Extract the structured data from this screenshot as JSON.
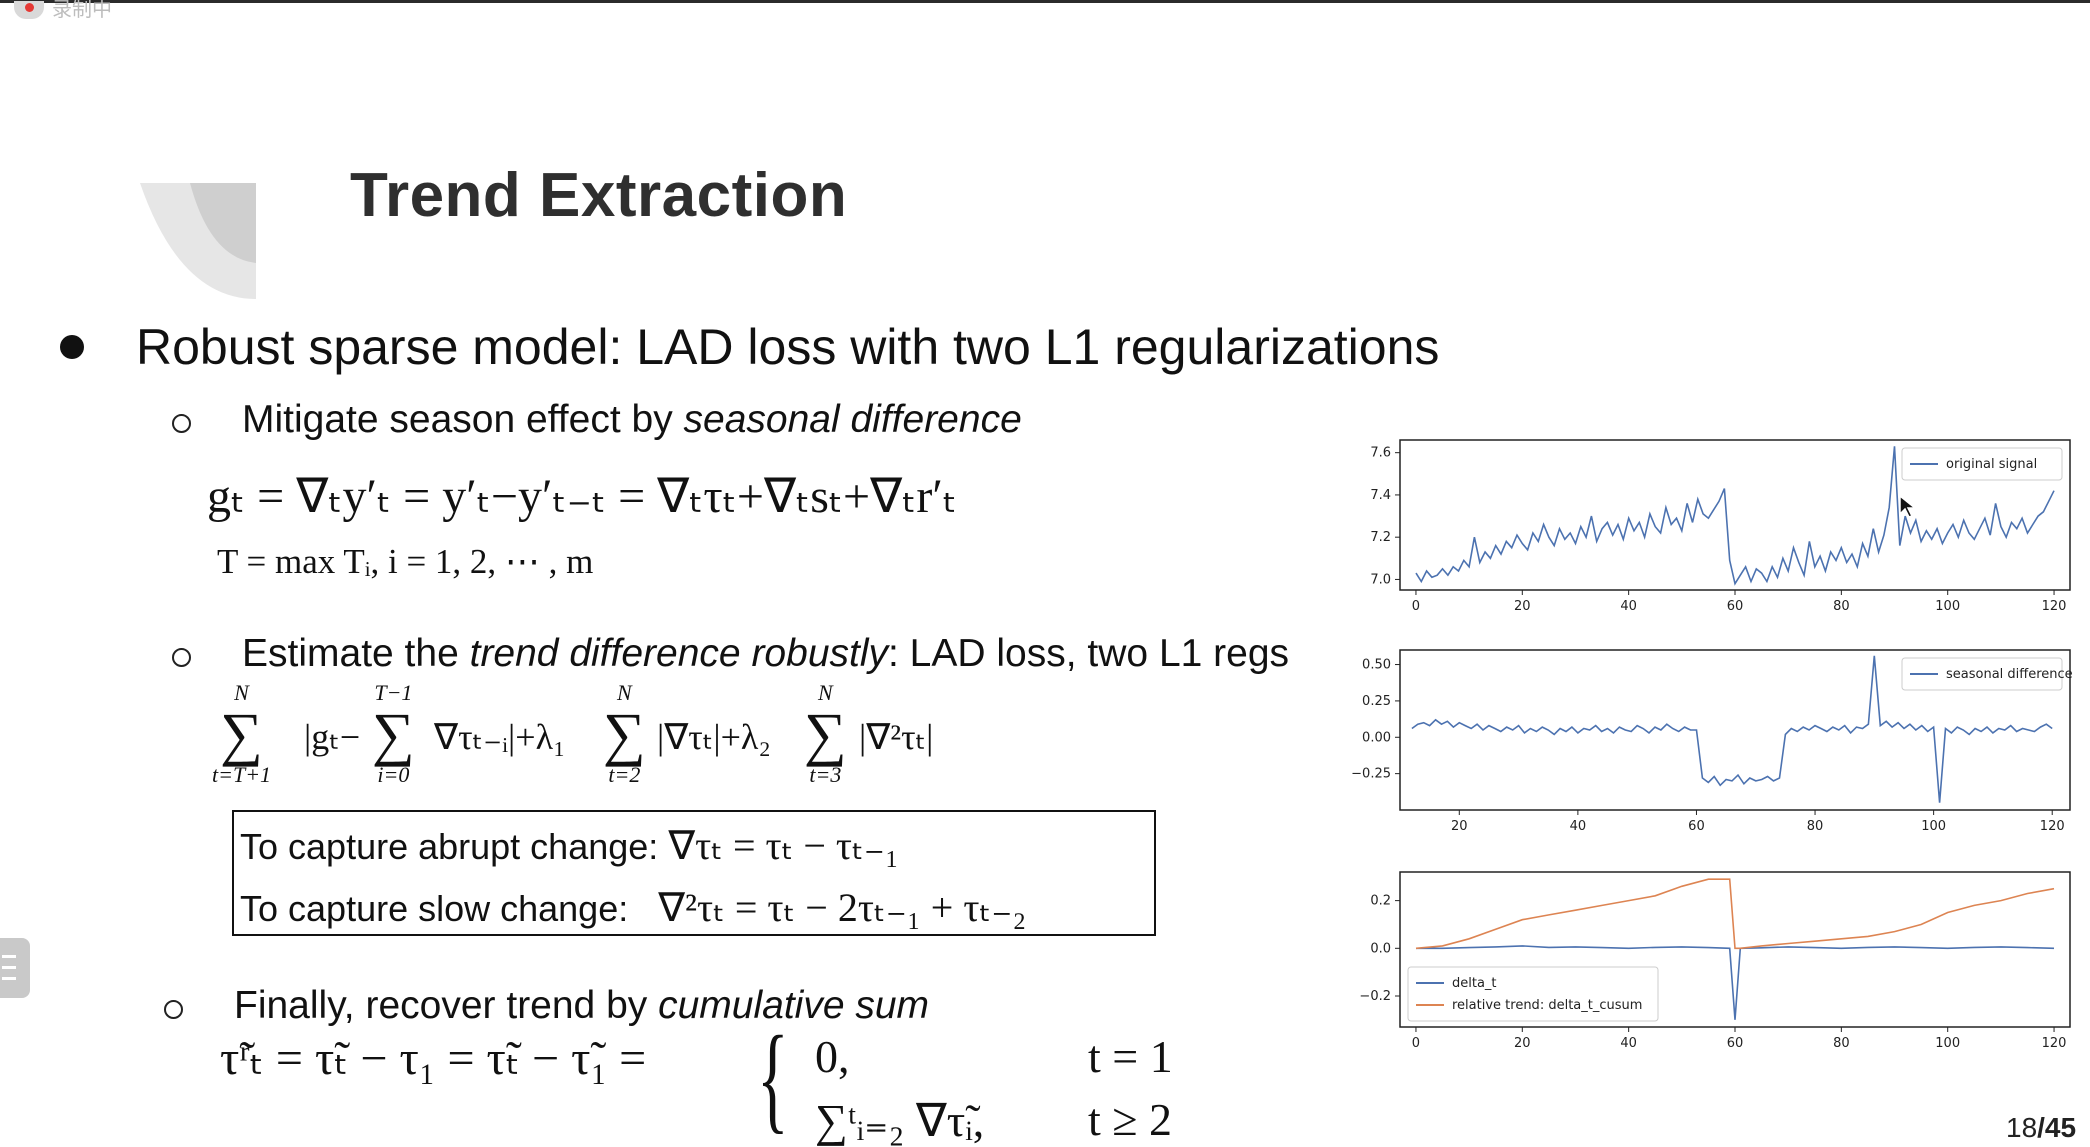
{
  "recorder": {
    "label": "录制中"
  },
  "slide": {
    "title": "Trend Extraction",
    "main_point": "Robust sparse model: LAD loss with two L1 regularizations",
    "sub1": {
      "prefix": "Mitigate season effect by ",
      "emph": "seasonal difference"
    },
    "eq1": "gₜ = ∇ₜy′ₜ = y′ₜ−y′ₜ₋ₜ = ∇ₜτₜ+∇ₜsₜ+∇ₜr′ₜ",
    "eq2": "T = max Tᵢ, i = 1, 2, ⋯ , m",
    "sub2": {
      "prefix": "Estimate the ",
      "emph": "trend difference robustly",
      "suffix": ": LAD loss, two L1 regs"
    },
    "objective": {
      "s1_top": "N",
      "s1_bot": "t=T+1",
      "t1": "|gₜ−",
      "s2_top": "T−1",
      "s2_bot": "i=0",
      "t2": "∇τₜ₋ᵢ|+λ₁",
      "s3_top": "N",
      "s3_bot": "t=2",
      "t3": "|∇τₜ|+λ₂",
      "s4_top": "N",
      "s4_bot": "t=3",
      "t4": "|∇²τₜ|"
    },
    "box": {
      "abrupt_label": "To capture abrupt change:",
      "abrupt_formula": "∇τₜ = τₜ − τₜ₋₁",
      "slow_label": "To capture slow change:",
      "slow_formula": "∇²τₜ = τₜ − 2τₜ₋₁ + τₜ₋₂"
    },
    "sub3": {
      "prefix": "Finally, recover trend by ",
      "emph": "cumulative sum"
    },
    "final_lhs": "τ̃ʳₜ = τ̃ₜ − τ₁ = τ̃ₜ − τ̃₁ =",
    "case1_val": "0,",
    "case1_cond": "t = 1",
    "case2_val": "∑ᵗᵢ₌₂ ∇τ̃ᵢ,",
    "case2_cond": "t ≥ 2",
    "page_current": "18",
    "page_total": "/45"
  },
  "chart_data": [
    {
      "type": "line",
      "x": [
        0,
        1,
        2,
        3,
        4,
        5,
        6,
        7,
        8,
        9,
        10,
        11,
        12,
        13,
        14,
        15,
        16,
        17,
        18,
        19,
        20,
        21,
        22,
        23,
        24,
        25,
        26,
        27,
        28,
        29,
        30,
        31,
        32,
        33,
        34,
        35,
        36,
        37,
        38,
        39,
        40,
        41,
        42,
        43,
        44,
        45,
        46,
        47,
        48,
        49,
        50,
        51,
        52,
        53,
        54,
        55,
        56,
        57,
        58,
        59,
        60,
        61,
        62,
        63,
        64,
        65,
        66,
        67,
        68,
        69,
        70,
        71,
        72,
        73,
        74,
        75,
        76,
        77,
        78,
        79,
        80,
        81,
        82,
        83,
        84,
        85,
        86,
        87,
        88,
        89,
        90,
        91,
        92,
        93,
        94,
        95,
        96,
        97,
        98,
        99,
        100,
        101,
        102,
        103,
        104,
        105,
        106,
        107,
        108,
        109,
        110,
        111,
        112,
        113,
        114,
        115,
        116,
        117,
        118,
        119,
        120
      ],
      "series": [
        {
          "name": "original signal",
          "color": "#4c72b0",
          "values": [
            7.03,
            6.99,
            7.04,
            7.01,
            7.02,
            7.05,
            7.02,
            7.06,
            7.04,
            7.09,
            7.06,
            7.2,
            7.08,
            7.13,
            7.1,
            7.16,
            7.12,
            7.18,
            7.15,
            7.21,
            7.17,
            7.14,
            7.22,
            7.18,
            7.26,
            7.2,
            7.16,
            7.24,
            7.19,
            7.22,
            7.17,
            7.25,
            7.2,
            7.3,
            7.18,
            7.24,
            7.27,
            7.21,
            7.26,
            7.19,
            7.29,
            7.23,
            7.27,
            7.2,
            7.31,
            7.25,
            7.22,
            7.34,
            7.26,
            7.29,
            7.23,
            7.36,
            7.27,
            7.38,
            7.31,
            7.29,
            7.33,
            7.37,
            7.43,
            7.09,
            6.98,
            7.02,
            7.06,
            6.99,
            7.05,
            7.03,
            6.99,
            7.06,
            7.01,
            7.1,
            7.04,
            7.15,
            7.08,
            7.02,
            7.18,
            7.06,
            7.11,
            7.04,
            7.13,
            7.09,
            7.15,
            7.08,
            7.12,
            7.06,
            7.17,
            7.11,
            7.24,
            7.13,
            7.21,
            7.34,
            7.63,
            7.16,
            7.3,
            7.22,
            7.28,
            7.18,
            7.23,
            7.19,
            7.24,
            7.17,
            7.22,
            7.26,
            7.2,
            7.28,
            7.22,
            7.19,
            7.24,
            7.29,
            7.21,
            7.36,
            7.25,
            7.2,
            7.27,
            7.24,
            7.29,
            7.22,
            7.26,
            7.3,
            7.32,
            7.37,
            7.42
          ]
        }
      ],
      "xlim": [
        -3,
        123
      ],
      "ylim": [
        6.95,
        7.66
      ],
      "xticks": [
        0,
        20,
        40,
        60,
        80,
        100,
        120
      ],
      "yticks": [
        "7.0",
        "7.2",
        "7.4",
        "7.6"
      ],
      "legend": "top-right",
      "grid": false
    },
    {
      "type": "line",
      "x": [
        12,
        13,
        14,
        15,
        16,
        17,
        18,
        19,
        20,
        21,
        22,
        23,
        24,
        25,
        26,
        27,
        28,
        29,
        30,
        31,
        32,
        33,
        34,
        35,
        36,
        37,
        38,
        39,
        40,
        41,
        42,
        43,
        44,
        45,
        46,
        47,
        48,
        49,
        50,
        51,
        52,
        53,
        54,
        55,
        56,
        57,
        58,
        59,
        60,
        61,
        62,
        63,
        64,
        65,
        66,
        67,
        68,
        69,
        70,
        71,
        72,
        73,
        74,
        75,
        76,
        77,
        78,
        79,
        80,
        81,
        82,
        83,
        84,
        85,
        86,
        87,
        88,
        89,
        90,
        91,
        92,
        93,
        94,
        95,
        96,
        97,
        98,
        99,
        100,
        101,
        102,
        103,
        104,
        105,
        106,
        107,
        108,
        109,
        110,
        111,
        112,
        113,
        114,
        115,
        116,
        117,
        118,
        119,
        120
      ],
      "series": [
        {
          "name": "seasonal difference",
          "color": "#4c72b0",
          "values": [
            0.06,
            0.09,
            0.1,
            0.08,
            0.12,
            0.09,
            0.11,
            0.07,
            0.1,
            0.08,
            0.06,
            0.09,
            0.05,
            0.08,
            0.06,
            0.04,
            0.07,
            0.05,
            0.08,
            0.03,
            0.06,
            0.04,
            0.07,
            0.05,
            0.02,
            0.06,
            0.04,
            0.07,
            0.03,
            0.06,
            0.05,
            0.08,
            0.04,
            0.06,
            0.03,
            0.07,
            0.05,
            0.04,
            0.08,
            0.06,
            0.03,
            0.07,
            0.05,
            0.09,
            0.06,
            0.04,
            0.07,
            0.05,
            0.05,
            -0.28,
            -0.31,
            -0.27,
            -0.33,
            -0.29,
            -0.3,
            -0.26,
            -0.32,
            -0.28,
            -0.3,
            -0.29,
            -0.27,
            -0.3,
            -0.28,
            0.02,
            0.06,
            0.04,
            0.07,
            0.05,
            0.08,
            0.06,
            0.04,
            0.07,
            0.05,
            0.08,
            0.03,
            0.07,
            0.06,
            0.09,
            0.56,
            0.08,
            0.11,
            0.07,
            0.1,
            0.06,
            0.09,
            0.05,
            0.08,
            0.04,
            0.07,
            -0.45,
            0.06,
            0.03,
            0.07,
            0.05,
            0.02,
            0.06,
            0.04,
            0.07,
            0.03,
            0.06,
            0.05,
            0.08,
            0.04,
            0.06,
            0.05,
            0.04,
            0.07,
            0.09,
            0.06
          ]
        }
      ],
      "xlim": [
        10,
        123
      ],
      "ylim": [
        -0.5,
        0.6
      ],
      "xticks": [
        20,
        40,
        60,
        80,
        100,
        120
      ],
      "yticks": [
        "0.50",
        "0.25",
        "0.00",
        "−0.25"
      ],
      "legend": "top-right",
      "grid": false
    },
    {
      "type": "line",
      "x": [
        0,
        5,
        10,
        15,
        20,
        25,
        30,
        35,
        40,
        45,
        50,
        55,
        59,
        60,
        61,
        65,
        70,
        75,
        80,
        85,
        90,
        95,
        100,
        105,
        110,
        115,
        120
      ],
      "series": [
        {
          "name": "delta_t",
          "color": "#4c72b0",
          "values": [
            0.0,
            0.0,
            0.003,
            0.006,
            0.01,
            0.004,
            0.006,
            0.003,
            0.0,
            0.004,
            0.006,
            0.003,
            0.0,
            -0.3,
            0.0,
            0.002,
            0.006,
            0.003,
            0.0,
            0.004,
            0.006,
            0.003,
            0.0,
            0.004,
            0.006,
            0.003,
            0.0
          ]
        },
        {
          "name": "relative trend: delta_t_cusum",
          "color": "#dd8452",
          "values": [
            0.0,
            0.01,
            0.04,
            0.08,
            0.12,
            0.14,
            0.16,
            0.18,
            0.2,
            0.22,
            0.26,
            0.29,
            0.29,
            0.0,
            0.0,
            0.01,
            0.02,
            0.03,
            0.04,
            0.05,
            0.07,
            0.1,
            0.15,
            0.18,
            0.2,
            0.23,
            0.25
          ]
        }
      ],
      "xlim": [
        -3,
        123
      ],
      "ylim": [
        -0.33,
        0.32
      ],
      "xticks": [
        0,
        20,
        40,
        60,
        80,
        100,
        120
      ],
      "yticks": [
        "0.2",
        "0.0",
        "−0.2"
      ],
      "legend": "bottom-left",
      "grid": false
    }
  ]
}
